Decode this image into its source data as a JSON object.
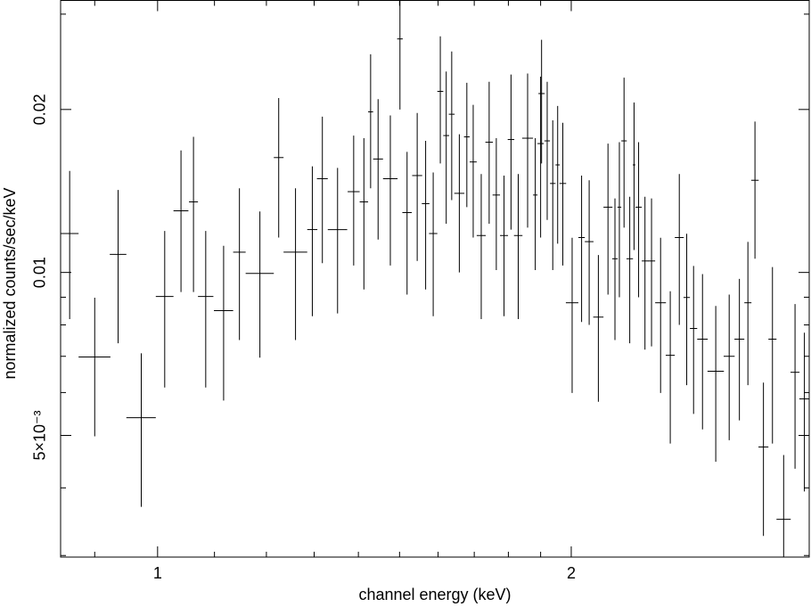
{
  "chart_data": {
    "type": "errorbar",
    "xlabel": "channel energy (keV)",
    "ylabel": "normalized counts/sec/keV",
    "xscale": "log",
    "yscale": "log",
    "xlim": [
      0.85,
      2.98
    ],
    "ylim": [
      0.00298,
      0.0318
    ],
    "xticks": [
      1,
      2
    ],
    "yticks": [
      {
        "value": 0.005,
        "label": "5×10⁻³"
      },
      0.01,
      0.02
    ],
    "xminorticks": [
      0.9,
      1.1,
      1.2,
      1.3,
      1.4,
      1.5,
      1.6,
      1.7,
      1.8,
      1.9
    ],
    "yminorticks": [
      0.003,
      0.004,
      0.006,
      0.007,
      0.008,
      0.009,
      0.03
    ],
    "series": [
      {
        "color": "#000000",
        "x": [
          0.863,
          0.9,
          0.936,
          0.973,
          1.012,
          1.04,
          1.062,
          1.084,
          1.117,
          1.147,
          1.187,
          1.225,
          1.26,
          1.296,
          1.318,
          1.352,
          1.389,
          1.413,
          1.429,
          1.447,
          1.477,
          1.501,
          1.519,
          1.545,
          1.567,
          1.587,
          1.606,
          1.622,
          1.637,
          1.658,
          1.679,
          1.697,
          1.72,
          1.743,
          1.764,
          1.787,
          1.808,
          1.83,
          1.859,
          1.883,
          1.9,
          1.903,
          1.921,
          1.939,
          1.955,
          1.972,
          2.003,
          2.035,
          2.061,
          2.093,
          2.127,
          2.152,
          2.168,
          2.185,
          2.206,
          2.222,
          2.239,
          2.263,
          2.288,
          2.323,
          2.361,
          2.397,
          2.427,
          2.455,
          2.492,
          2.548,
          2.606,
          2.651,
          2.689,
          2.721,
          2.76,
          2.802,
          2.855,
          2.91,
          2.956
        ],
        "xerr": [
          0.013,
          0.024,
          0.013,
          0.024,
          0.015,
          0.013,
          0.008,
          0.014,
          0.018,
          0.012,
          0.028,
          0.01,
          0.025,
          0.011,
          0.012,
          0.022,
          0.014,
          0.01,
          0.006,
          0.012,
          0.018,
          0.007,
          0.012,
          0.013,
          0.01,
          0.011,
          0.008,
          0.008,
          0.008,
          0.014,
          0.008,
          0.01,
          0.013,
          0.011,
          0.011,
          0.012,
          0.01,
          0.013,
          0.017,
          0.007,
          0.01,
          0.01,
          0.009,
          0.009,
          0.007,
          0.011,
          0.021,
          0.011,
          0.015,
          0.018,
          0.016,
          0.01,
          0.007,
          0.01,
          0.012,
          0.005,
          0.012,
          0.012,
          0.014,
          0.021,
          0.018,
          0.018,
          0.013,
          0.015,
          0.022,
          0.035,
          0.024,
          0.022,
          0.016,
          0.017,
          0.023,
          0.019,
          0.034,
          0.022,
          0.025
        ],
        "values": [
          0.0118,
          0.00698,
          0.0108,
          0.00539,
          0.00903,
          0.013,
          0.0135,
          0.00903,
          0.0085,
          0.0109,
          0.00996,
          0.0163,
          0.0109,
          0.012,
          0.0149,
          0.012,
          0.0141,
          0.0135,
          0.0198,
          0.0162,
          0.0149,
          0.027,
          0.0129,
          0.0151,
          0.0134,
          0.0118,
          0.0216,
          0.0179,
          0.0196,
          0.014,
          0.0178,
          0.016,
          0.0117,
          0.0174,
          0.0139,
          0.0117,
          0.0176,
          0.0117,
          0.0177,
          0.0139,
          0.0173,
          0.0214,
          0.0175,
          0.0146,
          0.0158,
          0.0146,
          0.00879,
          0.0116,
          0.0114,
          0.00827,
          0.0132,
          0.0106,
          0.0132,
          0.0175,
          0.0106,
          0.0158,
          0.0132,
          0.0105,
          0.0105,
          0.00879,
          0.00703,
          0.0116,
          0.00899,
          0.00788,
          0.00753,
          0.00657,
          0.007,
          0.00753,
          0.00879,
          0.0148,
          0.00476,
          0.00753,
          0.0035,
          0.00654,
          0.00584
        ],
        "yerr": [
          0.0036,
          0.002,
          0.0034,
          0.0017,
          0.0029,
          0.0038,
          0.0043,
          0.0029,
          0.0027,
          0.0034,
          0.003,
          0.0047,
          0.0034,
          0.0037,
          0.0045,
          0.0036,
          0.0038,
          0.0042,
          0.0055,
          0.0047,
          0.0046,
          0.007,
          0.0038,
          0.0046,
          0.0041,
          0.0035,
          0.0057,
          0.0056,
          0.006,
          0.004,
          0.0046,
          0.0044,
          0.0035,
          0.0051,
          0.0038,
          0.0034,
          0.0056,
          0.0035,
          0.0056,
          0.0038,
          0.0057,
          0.0055,
          0.005,
          0.0045,
          0.0045,
          0.0043,
          0.0028,
          0.0035,
          0.0034,
          0.0025,
          0.0041,
          0.0031,
          0.0042,
          0.0054,
          0.0032,
          0.0048,
          0.0042,
          0.0033,
          0.0032,
          0.0028,
          0.0022,
          0.0036,
          0.0028,
          0.0024,
          0.0024,
          0.0021,
          0.0021,
          0.0022,
          0.0026,
          0.0042,
          0.0015,
          0.0027,
          0.0011,
          0.0022,
          0.0019
        ]
      }
    ]
  }
}
